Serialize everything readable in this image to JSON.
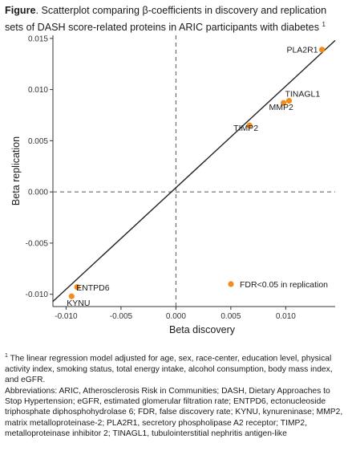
{
  "caption": {
    "figure_label": "Figure",
    "text_before_beta": ". Scatterplot comparing ",
    "beta_symbol": "β",
    "text_after_beta": "-coefficients in discovery and replication sets of DASH score-related proteins in ARIC participants with diabetes ",
    "footnote_marker": "1"
  },
  "chart_data": {
    "type": "scatter",
    "xlabel": "Beta discovery",
    "ylabel": "Beta replication",
    "xlim": [
      -0.0112,
      0.0145
    ],
    "ylim": [
      -0.0112,
      0.0153
    ],
    "x_ticks": [
      -0.01,
      -0.005,
      0.0,
      0.005,
      0.01
    ],
    "x_tick_labels": [
      "-0.010",
      "-0.005",
      "0.000",
      "0.005",
      "0.010"
    ],
    "y_ticks": [
      -0.01,
      -0.005,
      0.0,
      0.005,
      0.01,
      0.015
    ],
    "y_tick_labels": [
      "-0.010",
      "-0.005",
      "0.000",
      "0.005",
      "0.010",
      "0.015"
    ],
    "reference_lines": {
      "x": 0,
      "y": 0,
      "style": "dashed"
    },
    "fit_line": {
      "x": [
        -0.0112,
        0.0145
      ],
      "y": [
        -0.0107,
        0.0148
      ]
    },
    "points": [
      {
        "label": "PLA2R1",
        "x": 0.0133,
        "y": 0.0139
      },
      {
        "label": "TINAGL1",
        "x": 0.0103,
        "y": 0.0089
      },
      {
        "label": "MMP2",
        "x": 0.0098,
        "y": 0.0087
      },
      {
        "label": "TIMP2",
        "x": 0.0067,
        "y": 0.0065
      },
      {
        "label": "ENTPD6",
        "x": -0.009,
        "y": -0.0093
      },
      {
        "label": "KYNU",
        "x": -0.0095,
        "y": -0.0102
      }
    ],
    "point_color": "#f28c1a",
    "line_color": "#222222",
    "legend": {
      "label": "FDR<0.05 in replication",
      "position": "bottom-right"
    }
  },
  "footnotes": {
    "model_marker": "1",
    "model_note": " The linear regression model adjusted for age, sex, race-center, education level, physical activity index, smoking status, total energy intake, alcohol consumption, body mass index, and eGFR.",
    "abbreviations": "Abbreviations: ARIC, Atherosclerosis Risk in Communities; DASH, Dietary Approaches to Stop Hypertension; eGFR, estimated glomerular filtration rate; ENTPD6, ectonucleoside triphosphate diphosphohydrolase 6; FDR, false discovery rate; KYNU, kynureninase; MMP2, matrix metalloproteinase-2; PLA2R1, secretory phospholipase A2 receptor; TIMP2, metalloproteinase inhibitor 2; TINAGL1, tubulointerstitial nephritis antigen-like"
  }
}
